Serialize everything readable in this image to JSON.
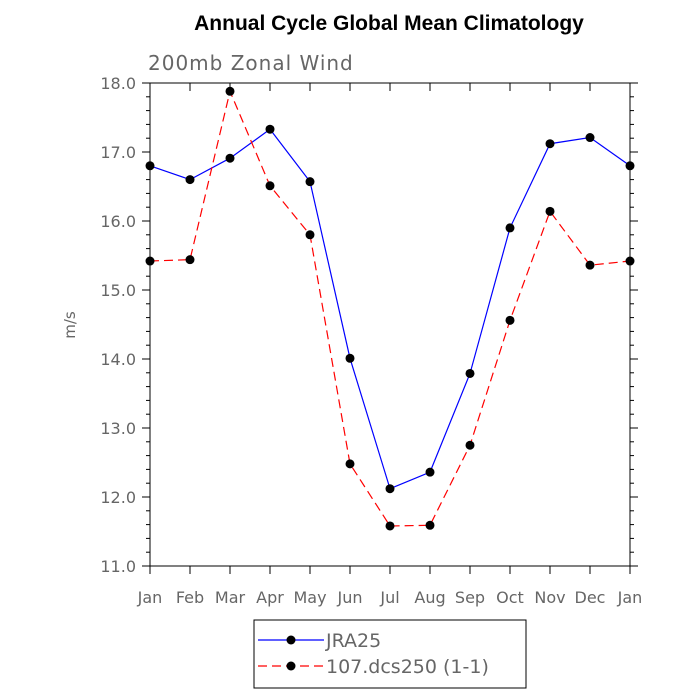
{
  "chart_data": {
    "type": "line",
    "title": "Annual Cycle Global Mean Climatology",
    "subtitle": "200mb Zonal Wind",
    "xlabel": "",
    "ylabel": "m/s",
    "categories": [
      "Jan",
      "Feb",
      "Mar",
      "Apr",
      "May",
      "Jun",
      "Jul",
      "Aug",
      "Sep",
      "Oct",
      "Nov",
      "Dec",
      "Jan"
    ],
    "ylim": [
      11.0,
      18.0
    ],
    "yticks": [
      "11.0",
      "12.0",
      "13.0",
      "14.0",
      "15.0",
      "16.0",
      "17.0",
      "18.0"
    ],
    "grid": false,
    "legend_position": "bottom",
    "series": [
      {
        "name": "JRA25",
        "color": "#0000ff",
        "dash": "solid",
        "values": [
          16.8,
          16.6,
          16.91,
          17.33,
          16.57,
          14.01,
          12.12,
          12.36,
          13.79,
          15.9,
          17.12,
          17.21,
          16.8
        ]
      },
      {
        "name": "107.dcs250 (1-1)",
        "color": "#ff0000",
        "dash": "dashed",
        "values": [
          15.42,
          15.44,
          17.88,
          16.51,
          15.8,
          12.48,
          11.58,
          11.59,
          12.75,
          14.56,
          16.14,
          15.36,
          15.42
        ]
      }
    ]
  }
}
